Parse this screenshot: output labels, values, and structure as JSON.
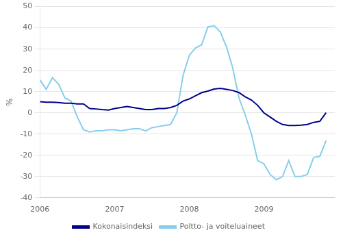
{
  "chart_data": {
    "type": "line",
    "ylabel": "%",
    "x": [
      2006,
      2006.0833333333333,
      2006.1666666666667,
      2006.25,
      2006.3333333333333,
      2006.4166666666667,
      2006.5,
      2006.5833333333333,
      2006.6666666666667,
      2006.75,
      2006.8333333333333,
      2006.9166666666667,
      2007,
      2007.0833333333333,
      2007.1666666666667,
      2007.25,
      2007.3333333333333,
      2007.4166666666667,
      2007.5,
      2007.5833333333333,
      2007.6666666666667,
      2007.75,
      2007.8333333333333,
      2007.9166666666667,
      2008,
      2008.0833333333333,
      2008.1666666666667,
      2008.25,
      2008.3333333333333,
      2008.4166666666667,
      2008.5,
      2008.5833333333333,
      2008.6666666666667,
      2008.75,
      2008.8333333333333,
      2008.9166666666667,
      2009,
      2009.0833333333333,
      2009.1666666666667,
      2009.25,
      2009.3333333333333,
      2009.4166666666667,
      2009.5,
      2009.5833333333333,
      2009.6666666666667,
      2009.75,
      2009.8333333333333
    ],
    "series": [
      {
        "name": "Kokonaisindeksi",
        "color": "#00008B",
        "values": [
          5.2,
          5.0,
          5.0,
          4.8,
          4.5,
          4.5,
          4.2,
          4.2,
          2.0,
          1.8,
          1.5,
          1.3,
          2.0,
          2.5,
          3.0,
          2.5,
          2.0,
          1.5,
          1.5,
          2.0,
          2.0,
          2.5,
          3.5,
          5.5,
          6.5,
          8.0,
          9.5,
          10.2,
          11.2,
          11.5,
          11.0,
          10.5,
          9.5,
          7.5,
          6.0,
          3.5,
          0.0,
          -2.0,
          -4.0,
          -5.5,
          -6.0,
          -6.0,
          -5.8,
          -5.5,
          -4.5,
          -4.0,
          0.0
        ]
      },
      {
        "name": "Poltto- ja voiteluaineet",
        "color": "#87CEEB",
        "values": [
          15.5,
          11.0,
          16.5,
          13.5,
          7.0,
          5.5,
          -2.0,
          -8.0,
          -9.0,
          -8.5,
          -8.5,
          -8.0,
          -8.0,
          -8.5,
          -8.0,
          -7.5,
          -7.5,
          -8.5,
          -7.0,
          -6.5,
          -6.0,
          -5.5,
          0.0,
          17.5,
          27.0,
          30.5,
          32.0,
          40.5,
          41.0,
          38.0,
          31.0,
          21.0,
          7.0,
          -1.0,
          -10.0,
          -22.5,
          -24.0,
          -29.0,
          -31.5,
          -30.0,
          -22.5,
          -30.0,
          -30.0,
          -29.0,
          -21.0,
          -20.5,
          -13.0
        ]
      }
    ],
    "xlim": [
      2006.0,
      2009.95
    ],
    "xticks": [
      2006,
      2007,
      2008,
      2009
    ],
    "ylim": [
      -40,
      50
    ],
    "yticks": [
      -40,
      -30,
      -20,
      -10,
      0,
      10,
      20,
      30,
      40,
      50
    ],
    "grid": "y",
    "legend": "bottom"
  }
}
